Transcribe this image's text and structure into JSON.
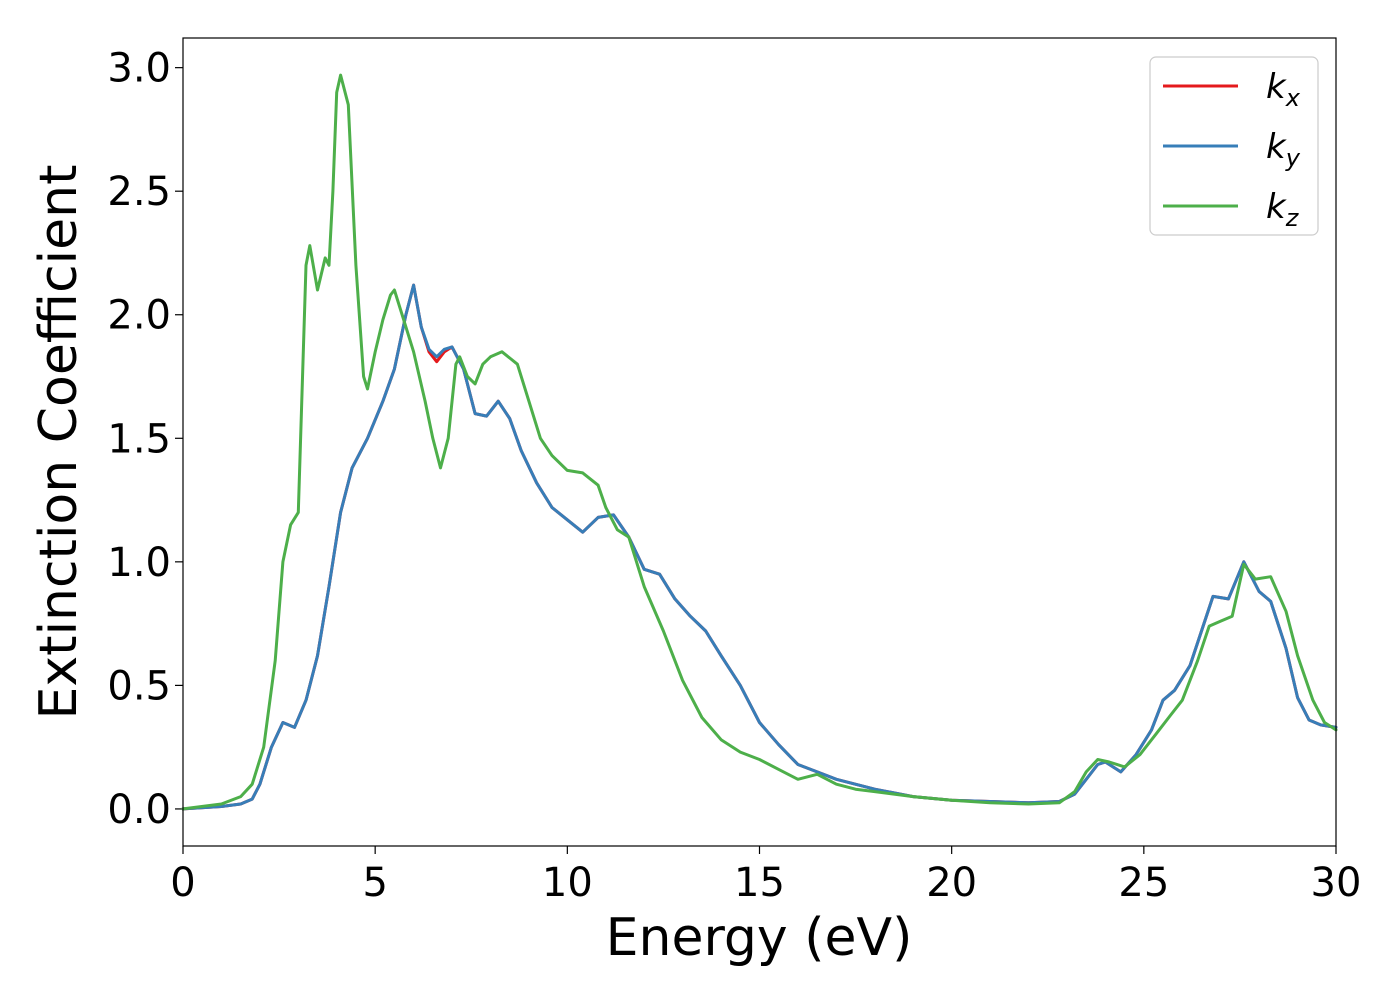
{
  "chart_data": {
    "type": "line",
    "xlabel": "Energy (eV)",
    "ylabel": "Extinction Coefficient",
    "xlim": [
      0,
      30
    ],
    "ylim": [
      -0.15,
      3.12
    ],
    "xticks": [
      0,
      5,
      10,
      15,
      20,
      25,
      30
    ],
    "yticks": [
      0.0,
      0.5,
      1.0,
      1.5,
      2.0,
      2.5,
      3.0
    ],
    "xtick_labels": [
      "0",
      "5",
      "10",
      "15",
      "20",
      "25",
      "30"
    ],
    "ytick_labels": [
      "0.0",
      "0.5",
      "1.0",
      "1.5",
      "2.0",
      "2.5",
      "3.0"
    ],
    "grid": false,
    "legend_position": "top-right",
    "series": [
      {
        "name_base": "k",
        "name_sub": "x",
        "color": "#e41a1c",
        "points": [
          [
            0,
            0
          ],
          [
            1,
            0.01
          ],
          [
            1.5,
            0.02
          ],
          [
            1.8,
            0.04
          ],
          [
            2.0,
            0.1
          ],
          [
            2.3,
            0.25
          ],
          [
            2.6,
            0.35
          ],
          [
            2.9,
            0.33
          ],
          [
            3.2,
            0.44
          ],
          [
            3.5,
            0.62
          ],
          [
            3.8,
            0.9
          ],
          [
            4.1,
            1.2
          ],
          [
            4.4,
            1.38
          ],
          [
            4.8,
            1.5
          ],
          [
            5.2,
            1.65
          ],
          [
            5.5,
            1.78
          ],
          [
            5.8,
            2.0
          ],
          [
            6.0,
            2.12
          ],
          [
            6.2,
            1.95
          ],
          [
            6.4,
            1.85
          ],
          [
            6.6,
            1.81
          ],
          [
            6.8,
            1.85
          ],
          [
            7.0,
            1.87
          ],
          [
            7.3,
            1.78
          ],
          [
            7.6,
            1.6
          ],
          [
            7.9,
            1.59
          ],
          [
            8.2,
            1.65
          ],
          [
            8.5,
            1.58
          ],
          [
            8.8,
            1.45
          ],
          [
            9.2,
            1.32
          ],
          [
            9.6,
            1.22
          ],
          [
            10.0,
            1.17
          ],
          [
            10.4,
            1.12
          ],
          [
            10.8,
            1.18
          ],
          [
            11.2,
            1.19
          ],
          [
            11.6,
            1.1
          ],
          [
            12.0,
            0.97
          ],
          [
            12.4,
            0.95
          ],
          [
            12.8,
            0.85
          ],
          [
            13.2,
            0.78
          ],
          [
            13.6,
            0.72
          ],
          [
            14.0,
            0.62
          ],
          [
            14.5,
            0.5
          ],
          [
            15.0,
            0.35
          ],
          [
            15.5,
            0.26
          ],
          [
            16.0,
            0.18
          ],
          [
            16.5,
            0.15
          ],
          [
            17.0,
            0.12
          ],
          [
            18.0,
            0.08
          ],
          [
            19.0,
            0.05
          ],
          [
            20.0,
            0.035
          ],
          [
            21.0,
            0.03
          ],
          [
            22.0,
            0.025
          ],
          [
            22.8,
            0.03
          ],
          [
            23.2,
            0.06
          ],
          [
            23.5,
            0.12
          ],
          [
            23.8,
            0.18
          ],
          [
            24.0,
            0.19
          ],
          [
            24.4,
            0.15
          ],
          [
            24.8,
            0.22
          ],
          [
            25.2,
            0.32
          ],
          [
            25.5,
            0.44
          ],
          [
            25.8,
            0.48
          ],
          [
            26.2,
            0.58
          ],
          [
            26.5,
            0.72
          ],
          [
            26.8,
            0.86
          ],
          [
            27.2,
            0.85
          ],
          [
            27.6,
            1.0
          ],
          [
            28.0,
            0.88
          ],
          [
            28.3,
            0.84
          ],
          [
            28.7,
            0.65
          ],
          [
            29.0,
            0.45
          ],
          [
            29.3,
            0.36
          ],
          [
            29.6,
            0.34
          ],
          [
            30.0,
            0.33
          ]
        ]
      },
      {
        "name_base": "k",
        "name_sub": "y",
        "color": "#377eb8",
        "points": [
          [
            0,
            0
          ],
          [
            1,
            0.01
          ],
          [
            1.5,
            0.02
          ],
          [
            1.8,
            0.04
          ],
          [
            2.0,
            0.1
          ],
          [
            2.3,
            0.25
          ],
          [
            2.6,
            0.35
          ],
          [
            2.9,
            0.33
          ],
          [
            3.2,
            0.44
          ],
          [
            3.5,
            0.62
          ],
          [
            3.8,
            0.9
          ],
          [
            4.1,
            1.2
          ],
          [
            4.4,
            1.38
          ],
          [
            4.8,
            1.5
          ],
          [
            5.2,
            1.65
          ],
          [
            5.5,
            1.78
          ],
          [
            5.8,
            2.0
          ],
          [
            6.0,
            2.12
          ],
          [
            6.2,
            1.95
          ],
          [
            6.4,
            1.86
          ],
          [
            6.6,
            1.83
          ],
          [
            6.8,
            1.86
          ],
          [
            7.0,
            1.87
          ],
          [
            7.3,
            1.78
          ],
          [
            7.6,
            1.6
          ],
          [
            7.9,
            1.59
          ],
          [
            8.2,
            1.65
          ],
          [
            8.5,
            1.58
          ],
          [
            8.8,
            1.45
          ],
          [
            9.2,
            1.32
          ],
          [
            9.6,
            1.22
          ],
          [
            10.0,
            1.17
          ],
          [
            10.4,
            1.12
          ],
          [
            10.8,
            1.18
          ],
          [
            11.2,
            1.19
          ],
          [
            11.6,
            1.1
          ],
          [
            12.0,
            0.97
          ],
          [
            12.4,
            0.95
          ],
          [
            12.8,
            0.85
          ],
          [
            13.2,
            0.78
          ],
          [
            13.6,
            0.72
          ],
          [
            14.0,
            0.62
          ],
          [
            14.5,
            0.5
          ],
          [
            15.0,
            0.35
          ],
          [
            15.5,
            0.26
          ],
          [
            16.0,
            0.18
          ],
          [
            16.5,
            0.15
          ],
          [
            17.0,
            0.12
          ],
          [
            18.0,
            0.08
          ],
          [
            19.0,
            0.05
          ],
          [
            20.0,
            0.035
          ],
          [
            21.0,
            0.03
          ],
          [
            22.0,
            0.025
          ],
          [
            22.8,
            0.03
          ],
          [
            23.2,
            0.06
          ],
          [
            23.5,
            0.12
          ],
          [
            23.8,
            0.18
          ],
          [
            24.0,
            0.19
          ],
          [
            24.4,
            0.15
          ],
          [
            24.8,
            0.22
          ],
          [
            25.2,
            0.32
          ],
          [
            25.5,
            0.44
          ],
          [
            25.8,
            0.48
          ],
          [
            26.2,
            0.58
          ],
          [
            26.5,
            0.72
          ],
          [
            26.8,
            0.86
          ],
          [
            27.2,
            0.85
          ],
          [
            27.6,
            1.0
          ],
          [
            28.0,
            0.88
          ],
          [
            28.3,
            0.84
          ],
          [
            28.7,
            0.65
          ],
          [
            29.0,
            0.45
          ],
          [
            29.3,
            0.36
          ],
          [
            29.6,
            0.34
          ],
          [
            30.0,
            0.33
          ]
        ]
      },
      {
        "name_base": "k",
        "name_sub": "z",
        "color": "#4daf4a",
        "points": [
          [
            0,
            0
          ],
          [
            1,
            0.02
          ],
          [
            1.5,
            0.05
          ],
          [
            1.8,
            0.1
          ],
          [
            2.1,
            0.25
          ],
          [
            2.4,
            0.6
          ],
          [
            2.6,
            1.0
          ],
          [
            2.8,
            1.15
          ],
          [
            3.0,
            1.2
          ],
          [
            3.2,
            2.2
          ],
          [
            3.3,
            2.28
          ],
          [
            3.5,
            2.1
          ],
          [
            3.7,
            2.23
          ],
          [
            3.8,
            2.2
          ],
          [
            3.9,
            2.5
          ],
          [
            4.0,
            2.9
          ],
          [
            4.1,
            2.97
          ],
          [
            4.3,
            2.85
          ],
          [
            4.5,
            2.2
          ],
          [
            4.7,
            1.75
          ],
          [
            4.8,
            1.7
          ],
          [
            5.0,
            1.85
          ],
          [
            5.2,
            1.98
          ],
          [
            5.4,
            2.08
          ],
          [
            5.5,
            2.1
          ],
          [
            5.7,
            2.0
          ],
          [
            6.0,
            1.85
          ],
          [
            6.3,
            1.65
          ],
          [
            6.5,
            1.5
          ],
          [
            6.7,
            1.38
          ],
          [
            6.9,
            1.5
          ],
          [
            7.1,
            1.8
          ],
          [
            7.2,
            1.83
          ],
          [
            7.4,
            1.75
          ],
          [
            7.6,
            1.72
          ],
          [
            7.8,
            1.8
          ],
          [
            8.0,
            1.83
          ],
          [
            8.3,
            1.85
          ],
          [
            8.7,
            1.8
          ],
          [
            9.0,
            1.65
          ],
          [
            9.3,
            1.5
          ],
          [
            9.6,
            1.43
          ],
          [
            10.0,
            1.37
          ],
          [
            10.4,
            1.36
          ],
          [
            10.8,
            1.31
          ],
          [
            11.0,
            1.22
          ],
          [
            11.3,
            1.13
          ],
          [
            11.6,
            1.1
          ],
          [
            12.0,
            0.9
          ],
          [
            12.5,
            0.72
          ],
          [
            13.0,
            0.52
          ],
          [
            13.5,
            0.37
          ],
          [
            14.0,
            0.28
          ],
          [
            14.5,
            0.23
          ],
          [
            15.0,
            0.2
          ],
          [
            15.5,
            0.16
          ],
          [
            16.0,
            0.12
          ],
          [
            16.5,
            0.14
          ],
          [
            17.0,
            0.1
          ],
          [
            17.5,
            0.08
          ],
          [
            18.0,
            0.07
          ],
          [
            19.0,
            0.05
          ],
          [
            20.0,
            0.035
          ],
          [
            21.0,
            0.025
          ],
          [
            22.0,
            0.02
          ],
          [
            22.8,
            0.025
          ],
          [
            23.2,
            0.07
          ],
          [
            23.5,
            0.15
          ],
          [
            23.8,
            0.2
          ],
          [
            24.1,
            0.19
          ],
          [
            24.5,
            0.17
          ],
          [
            24.9,
            0.22
          ],
          [
            25.3,
            0.3
          ],
          [
            25.7,
            0.38
          ],
          [
            26.0,
            0.44
          ],
          [
            26.4,
            0.6
          ],
          [
            26.7,
            0.74
          ],
          [
            27.0,
            0.76
          ],
          [
            27.3,
            0.78
          ],
          [
            27.6,
            0.99
          ],
          [
            27.9,
            0.93
          ],
          [
            28.3,
            0.94
          ],
          [
            28.7,
            0.8
          ],
          [
            29.0,
            0.62
          ],
          [
            29.4,
            0.44
          ],
          [
            29.7,
            0.35
          ],
          [
            30.0,
            0.32
          ]
        ]
      }
    ]
  }
}
